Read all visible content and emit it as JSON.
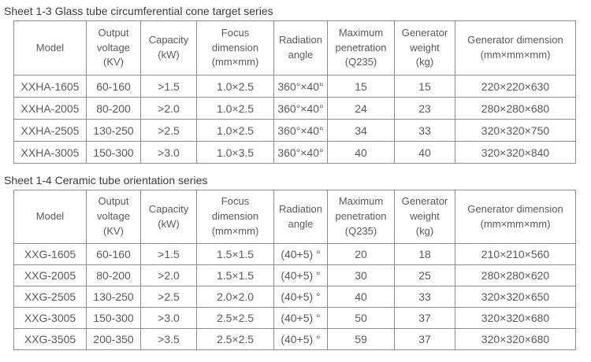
{
  "page": {
    "background_color": "#ffffff",
    "table_border_color": "#8c8c8c",
    "table_text_color": "#5a5a5a",
    "title_text_color": "#3c3c3c"
  },
  "tables": [
    {
      "title": "Sheet 1-3 Glass tube circumferential cone target series",
      "headers": [
        "Model",
        "Output\nvoltage\n(KV)",
        "Capacity\n(kW)",
        "Focus\ndimension\n(mm×mm)",
        "Radiation\nangle",
        "Maximum\npenetration\n(Q235)",
        "Generator\nweight\n(kg)",
        "Generator dimension\n(mm×mm×mm)"
      ],
      "rows": [
        [
          "XXHA-1605",
          "60-160",
          ">1.5",
          "1.0×2.5",
          "360°×40°",
          "15",
          "15",
          "220×220×630"
        ],
        [
          "XXHA-2005",
          "80-200",
          ">2.0",
          "1.0×2.5",
          "360°×40°",
          "24",
          "23",
          "280×280×680"
        ],
        [
          "XXHA-2505",
          "130-250",
          ">2.5",
          "1.0×2.5",
          "360°×40°",
          "34",
          "33",
          "320×320×750"
        ],
        [
          "XXHA-3005",
          "150-300",
          ">3.0",
          "1.0×3.5",
          "360°×40°",
          "40",
          "40",
          "320×320×840"
        ]
      ]
    },
    {
      "title": "Sheet 1-4 Ceramic tube orientation series",
      "headers": [
        "Model",
        "Output\nvoltage\n(KV)",
        "Capacity\n(kW)",
        "Focus\ndimension\n(mm×mm)",
        "Radiation\nangle",
        "Maximum\npenetration\n(Q235)",
        "Generator\nweight\n(kg)",
        "Generator dimension\n(mm×mm×mm)"
      ],
      "rows": [
        [
          "XXG-1605",
          "60-160",
          ">1.5",
          "1.5×1.5",
          "(40+5) °",
          "20",
          "18",
          "210×210×560"
        ],
        [
          "XXG-2005",
          "80-200",
          ">2.0",
          "1.5×1.5",
          "(40+5) °",
          "30",
          "25",
          "280×280×620"
        ],
        [
          "XXG-2505",
          "130-250",
          ">2.5",
          "2.0×2.0",
          "(40+5) °",
          "40",
          "33",
          "320×320×650"
        ],
        [
          "XXG-3005",
          "150-300",
          ">3.0",
          "2.5×2.5",
          "(40+5) °",
          "50",
          "37",
          "320×320×680"
        ],
        [
          "XXG-3505",
          "200-350",
          ">3.5",
          "2.5×2.5",
          "(40+5) °",
          "59",
          "37",
          "320×320×680"
        ]
      ]
    }
  ]
}
